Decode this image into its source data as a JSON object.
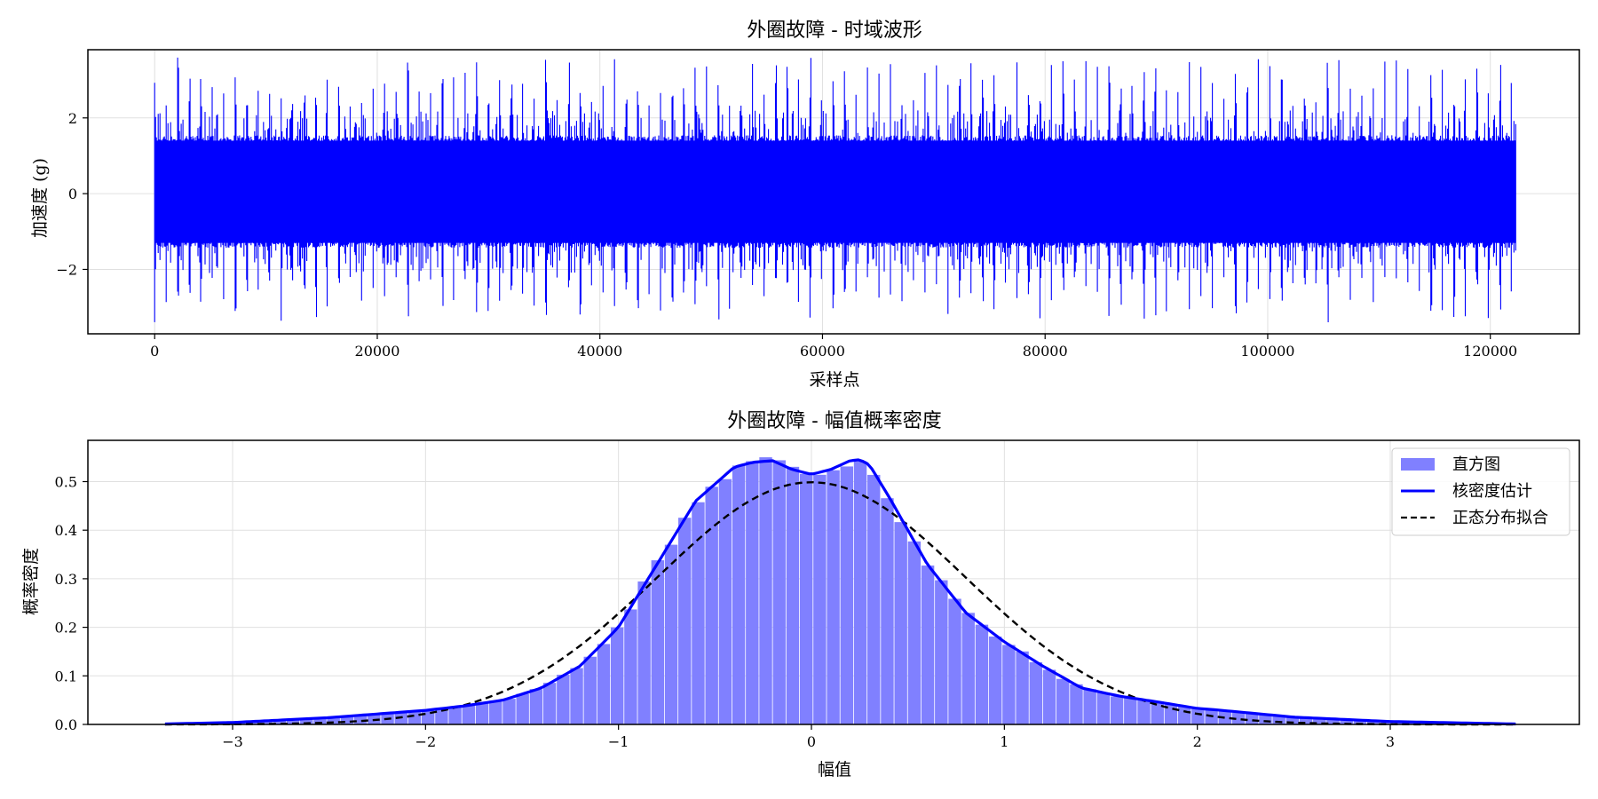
{
  "chart_data": [
    {
      "type": "line",
      "title": "外圈故障 - 时域波形",
      "xlabel": "采样点",
      "ylabel": "加速度 (g)",
      "xlim": [
        -6000,
        128000
      ],
      "ylim": [
        -3.7,
        3.8
      ],
      "xticks": [
        0,
        20000,
        40000,
        60000,
        80000,
        100000,
        120000
      ],
      "xtick_labels": [
        "0",
        "20000",
        "40000",
        "60000",
        "80000",
        "100000",
        "120000"
      ],
      "yticks": [
        -2,
        0,
        2
      ],
      "ytick_labels": [
        "−2",
        "0",
        "2"
      ],
      "grid": true,
      "series": [
        {
          "color": "#0000ff",
          "n_samples": 122281,
          "x_range": [
            0,
            122281
          ],
          "typical_envelope": [
            -1.3,
            1.4
          ],
          "impulse_peaks_range": [
            -3.4,
            3.6
          ]
        }
      ]
    },
    {
      "type": "bar",
      "title": "外圈故障 - 幅值概率密度",
      "xlabel": "幅值",
      "ylabel": "概率密度",
      "xlim": [
        -3.75,
        3.98
      ],
      "ylim": [
        0,
        0.585
      ],
      "xticks": [
        -3,
        -2,
        -1,
        0,
        1,
        2,
        3
      ],
      "xtick_labels": [
        "−3",
        "−2",
        "−1",
        "0",
        "1",
        "2",
        "3"
      ],
      "yticks": [
        0.0,
        0.1,
        0.2,
        0.3,
        0.4,
        0.5
      ],
      "ytick_labels": [
        "0.0",
        "0.1",
        "0.2",
        "0.3",
        "0.4",
        "0.5"
      ],
      "grid": true,
      "legend_position": "top-right",
      "histogram": {
        "name": "直方图",
        "color": "#8080ff",
        "bin_range": [
          -3.35,
          3.65
        ],
        "bin_width": 0.07,
        "kde_x": [
          -3.35,
          -3.0,
          -2.5,
          -2.0,
          -1.8,
          -1.6,
          -1.4,
          -1.2,
          -1.0,
          -0.8,
          -0.6,
          -0.4,
          -0.3,
          -0.2,
          -0.1,
          0.0,
          0.1,
          0.2,
          0.25,
          0.3,
          0.4,
          0.6,
          0.8,
          1.0,
          1.2,
          1.4,
          1.6,
          1.8,
          2.0,
          2.1,
          2.5,
          3.0,
          3.65
        ],
        "kde_y": [
          0.001,
          0.004,
          0.014,
          0.029,
          0.038,
          0.05,
          0.075,
          0.12,
          0.2,
          0.33,
          0.46,
          0.53,
          0.54,
          0.543,
          0.525,
          0.515,
          0.525,
          0.543,
          0.545,
          0.535,
          0.47,
          0.33,
          0.23,
          0.17,
          0.12,
          0.075,
          0.058,
          0.046,
          0.033,
          0.03,
          0.015,
          0.006,
          0.001
        ]
      },
      "series": [
        {
          "name": "核密度估计",
          "color": "#0000ff",
          "style": "solid",
          "kind": "kde"
        },
        {
          "name": "正态分布拟合",
          "color": "#000000",
          "style": "dashed",
          "kind": "normal",
          "mu": 0.0,
          "sigma": 0.8
        }
      ]
    }
  ]
}
